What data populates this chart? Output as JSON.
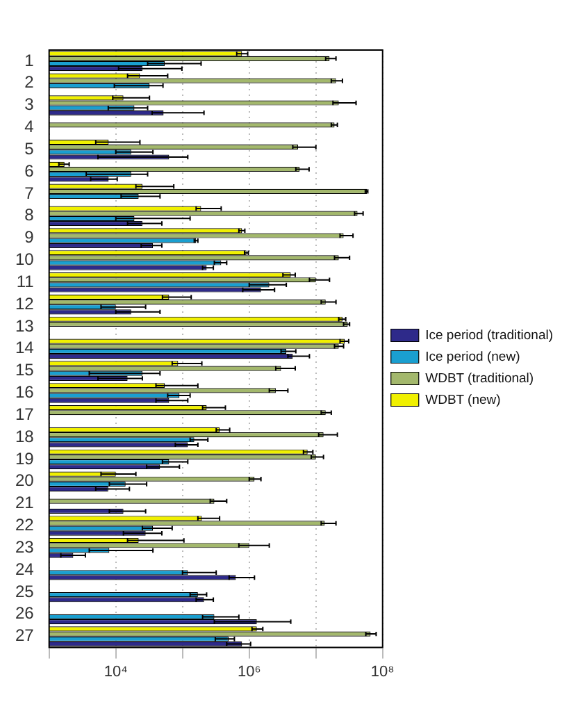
{
  "chart_data": {
    "type": "bar",
    "orientation": "horizontal",
    "log": "x",
    "categories": [
      "1",
      "2",
      "3",
      "4",
      "5",
      "6",
      "7",
      "8",
      "9",
      "10",
      "11",
      "12",
      "13",
      "14",
      "15",
      "16",
      "17",
      "18",
      "19",
      "20",
      "21",
      "22",
      "23",
      "24",
      "25",
      "26",
      "27"
    ],
    "xlim": [
      1000,
      100000000
    ],
    "xticks": [
      {
        "value": 1000,
        "label": null
      },
      {
        "value": 10000,
        "label": "10⁴"
      },
      {
        "value": 100000,
        "label": null
      },
      {
        "value": 1000000,
        "label": "10⁶"
      },
      {
        "value": 10000000,
        "label": null
      },
      {
        "value": 100000000,
        "label": "10⁸"
      }
    ],
    "grid": "x",
    "legend": "right",
    "series": [
      {
        "name": "Ice period (traditional)",
        "color": "#2e2a8a",
        "values": [
          25000.0,
          null,
          52000.0,
          null,
          63000.0,
          7800.0,
          null,
          25000.0,
          36000.0,
          230000.0,
          1500000.0,
          17000.0,
          null,
          4500000.0,
          15000.0,
          63000.0,
          null,
          120000.0,
          46000.0,
          7700.0,
          13000.0,
          28000.0,
          2300.0,
          630000.0,
          210000.0,
          1300000.0,
          780000.0
        ],
        "errors": [
          [
            11000.0,
            98000.0
          ],
          null,
          [
            35000.0,
            210000.0
          ],
          null,
          [
            5400.0,
            120000.0
          ],
          [
            4200.0,
            10500.0
          ],
          null,
          [
            15000.0,
            49000.0
          ],
          [
            24000.0,
            49000.0
          ],
          [
            200000.0,
            290000.0
          ],
          [
            800000.0,
            2400000.0
          ],
          [
            10000.0,
            46000.0
          ],
          null,
          [
            3800000.0,
            8000000.0
          ],
          [
            5400.0,
            25000.0
          ],
          [
            40000.0,
            120000.0
          ],
          null,
          [
            78000.0,
            170000.0
          ],
          [
            29000.0,
            90000.0
          ],
          [
            5000.0,
            16000.0
          ],
          [
            8000.0,
            28000.0
          ],
          [
            13000.0,
            49000.0
          ],
          [
            1500.0,
            3500.0
          ],
          [
            500000.0,
            1200000.0
          ],
          [
            160000.0,
            290000.0
          ],
          [
            300000.0,
            4200000.0
          ],
          [
            460000.0,
            1050000.0
          ]
        ]
      },
      {
        "name": "Ice period (new)",
        "color": "#1a9fd0",
        "values": [
          54000.0,
          32000.0,
          19000.0,
          null,
          17000.0,
          17000.0,
          22000.0,
          19000.0,
          160000.0,
          380000.0,
          2000000.0,
          10000.0,
          null,
          3600000.0,
          25000.0,
          90000.0,
          null,
          150000.0,
          63000.0,
          14000.0,
          null,
          36000.0,
          8000.0,
          120000.0,
          170000.0,
          300000.0,
          490000.0
        ],
        "errors": [
          [
            30000.0,
            190000.0
          ],
          [
            9500.0,
            51000.0
          ],
          [
            7700.0,
            30000.0
          ],
          null,
          [
            10000.0,
            36000.0
          ],
          [
            3600.0,
            30000.0
          ],
          [
            12000.0,
            46000.0
          ],
          [
            10000.0,
            130000.0
          ],
          [
            150000.0,
            170000.0
          ],
          [
            300000.0,
            460000.0
          ],
          [
            1000000.0,
            3600000.0
          ],
          [
            6000.0,
            28000.0
          ],
          null,
          [
            3000000.0,
            5000000.0
          ],
          [
            4000.0,
            46000.0
          ],
          [
            60000.0,
            130000.0
          ],
          null,
          [
            130000.0,
            240000.0
          ],
          [
            50000.0,
            120000.0
          ],
          [
            8000.0,
            29000.0
          ],
          null,
          [
            25000.0,
            70000.0
          ],
          [
            4000.0,
            36000.0
          ],
          [
            100000.0,
            320000.0
          ],
          [
            130000.0,
            230000.0
          ],
          [
            200000.0,
            700000.0
          ],
          [
            310000.0,
            600000.0
          ]
        ]
      },
      {
        "name": "WDBT (traditional)",
        "color": "#a3b86c",
        "values": [
          16000000.0,
          20000000.0,
          22000000.0,
          19000000.0,
          5400000.0,
          5700000.0,
          58000000.0,
          42000000.0,
          26000000.0,
          22000000.0,
          10000000.0,
          14000000.0,
          30000000.0,
          22000000.0,
          3000000.0,
          2500000.0,
          14000000.0,
          13000000.0,
          10000000.0,
          1200000.0,
          300000.0,
          13500000.0,
          1000000.0,
          null,
          null,
          null,
          66000000.0
        ],
        "errors": [
          [
            14000000.0,
            20000000.0
          ],
          [
            17000000.0,
            25000000.0
          ],
          [
            18000000.0,
            40000000.0
          ],
          [
            17000000.0,
            21000000.0
          ],
          [
            4500000.0,
            10000000.0
          ],
          [
            5000000.0,
            7900000.0
          ],
          [
            55000000.0,
            60000000.0
          ],
          [
            38000000.0,
            51000000.0
          ],
          [
            23000000.0,
            36000000.0
          ],
          [
            19000000.0,
            32000000.0
          ],
          [
            8000000.0,
            16000000.0
          ],
          [
            12000000.0,
            20000000.0
          ],
          [
            26000000.0,
            32000000.0
          ],
          [
            19000000.0,
            26000000.0
          ],
          [
            2500000.0,
            4900000.0
          ],
          [
            2000000.0,
            3800000.0
          ],
          [
            12000000.0,
            17000000.0
          ],
          [
            11000000.0,
            21000000.0
          ],
          [
            8500000.0,
            13000000.0
          ],
          [
            1000000.0,
            1500000.0
          ],
          [
            260000.0,
            460000.0
          ],
          [
            12000000.0,
            20000000.0
          ],
          [
            700000.0,
            2000000.0
          ],
          null,
          null,
          null,
          [
            56000000.0,
            80000000.0
          ]
        ]
      },
      {
        "name": "WDBT (new)",
        "color": "#f0f000",
        "values": [
          780000.0,
          23000.0,
          13000.0,
          null,
          7800.0,
          1700.0,
          25000.0,
          190000.0,
          780000.0,
          910000.0,
          4200000.0,
          63000.0,
          25000000.0,
          27000000.0,
          86000.0,
          54000.0,
          230000.0,
          360000.0,
          7500000.0,
          10000.0,
          null,
          195000.0,
          22000.0,
          null,
          null,
          null,
          1300000.0
        ],
        "errors": [
          [
            650000.0,
            950000.0
          ],
          [
            15000.0,
            60000.0
          ],
          [
            9000.0,
            32000.0
          ],
          null,
          [
            5000.0,
            23000.0
          ],
          [
            1400.0,
            2000.0
          ],
          [
            20000.0,
            74000.0
          ],
          [
            160000.0,
            380000.0
          ],
          [
            700000.0,
            860000.0
          ],
          [
            850000.0,
            970000.0
          ],
          [
            3200000.0,
            4900000.0
          ],
          [
            50000.0,
            135000.0
          ],
          [
            22000000.0,
            28000000.0
          ],
          [
            23000000.0,
            31000000.0
          ],
          [
            70000.0,
            195000.0
          ],
          [
            40000.0,
            170000.0
          ],
          [
            200000.0,
            440000.0
          ],
          [
            320000.0,
            510000.0
          ],
          [
            6500000.0,
            9000000.0
          ],
          [
            6000.0,
            20000.0
          ],
          null,
          [
            170000.0,
            360000.0
          ],
          [
            15000.0,
            105000.0
          ],
          null,
          null,
          null,
          [
            1100000.0,
            1600000.0
          ]
        ]
      }
    ]
  }
}
